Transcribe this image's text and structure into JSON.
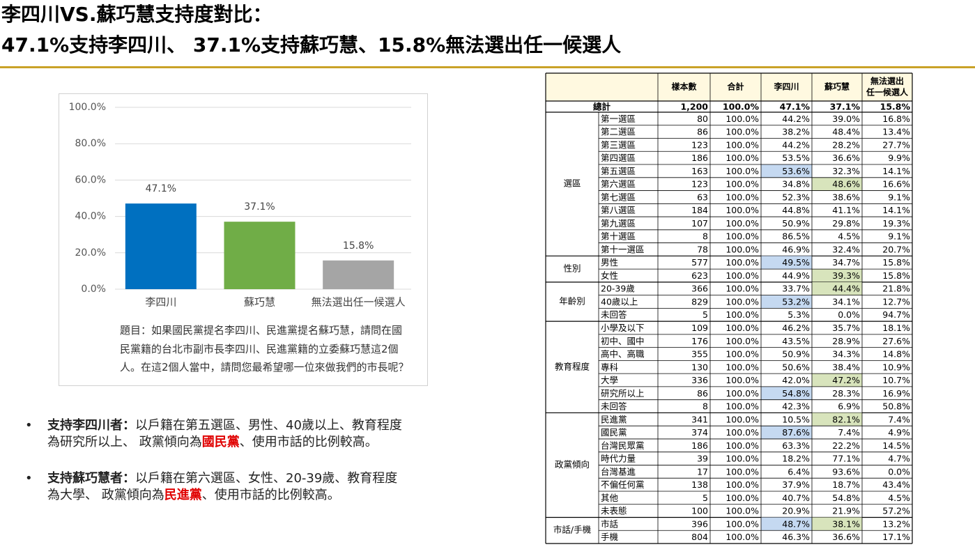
{
  "title": [
    "李四川VS.蘇巧慧支持度對比：",
    "47.1%支持李四川、 37.1%支持蘇巧慧、15.8%無法選出任一候選人"
  ],
  "chart_data": {
    "type": "bar",
    "categories": [
      "李四川",
      "蘇巧慧",
      "無法選出任一候選人"
    ],
    "values": [
      47.1,
      37.1,
      15.8
    ],
    "value_labels": [
      "47.1%",
      "37.1%",
      "15.8%"
    ],
    "colors": [
      "#0070c0",
      "#70ad47",
      "#a5a5a5"
    ],
    "ylim": [
      0,
      100
    ],
    "yticks": [
      {
        "value": 0,
        "label": "0.0%"
      },
      {
        "value": 20,
        "label": "20.0%"
      },
      {
        "value": 40,
        "label": "40.0%"
      },
      {
        "value": 60,
        "label": "60.0%"
      },
      {
        "value": 80,
        "label": "80.0%"
      },
      {
        "value": 100,
        "label": "100.0%"
      }
    ],
    "grid": true
  },
  "question": [
    "題目：如果國民黨提名李四川、民進黨提名蘇巧慧，請問在國",
    "民黨籍的台北市副市長李四川、民進黨籍的立委蘇巧慧這2個",
    "人。在這2個人當中，請問您最希望哪一位來做我們的市長呢？"
  ],
  "bullets": [
    {
      "lead": "支持李四川者：",
      "line1": "以戶籍在第五選區、男性、40歲以上、教育程度",
      "line2": "為研究所以上、 政黨傾向為",
      "party": "國民黨",
      "tail": "、使用市話的比例較高。"
    },
    {
      "lead": "支持蘇巧慧者：",
      "line1": "以戶籍在第六選區、女性、20-39歲、教育程度",
      "line2": "為大學、 政黨傾向為",
      "party": "民進黨",
      "tail": "、使用市話的比例較高。"
    }
  ],
  "table": {
    "header": [
      [
        "樣本數"
      ],
      [
        "合計"
      ],
      [
        "李四川"
      ],
      [
        "蘇巧慧"
      ],
      [
        "無法選出",
        "任一候選人"
      ]
    ],
    "total": {
      "label": "總計",
      "cells": [
        "1,200",
        "100.0%",
        "47.1%",
        "37.1%",
        "15.8%"
      ]
    },
    "groups": [
      {
        "label": "選區",
        "rows": [
          {
            "label": "第一選區",
            "cells": [
              "80",
              "100.0%",
              "44.2%",
              "39.0%",
              "16.8%"
            ]
          },
          {
            "label": "第二選區",
            "cells": [
              "86",
              "100.0%",
              "38.2%",
              "48.4%",
              "13.4%"
            ]
          },
          {
            "label": "第三選區",
            "cells": [
              "123",
              "100.0%",
              "44.2%",
              "28.2%",
              "27.7%"
            ]
          },
          {
            "label": "第四選區",
            "cells": [
              "186",
              "100.0%",
              "53.5%",
              "36.6%",
              "9.9%"
            ]
          },
          {
            "label": "第五選區",
            "cells": [
              "163",
              "100.0%",
              "53.6%",
              "32.3%",
              "14.1%"
            ],
            "highlight": {
              "2": "#c5d9f1"
            }
          },
          {
            "label": "第六選區",
            "cells": [
              "123",
              "100.0%",
              "34.8%",
              "48.6%",
              "16.6%"
            ],
            "highlight": {
              "3": "#d8e4bc"
            }
          },
          {
            "label": "第七選區",
            "cells": [
              "63",
              "100.0%",
              "52.3%",
              "38.6%",
              "9.1%"
            ]
          },
          {
            "label": "第八選區",
            "cells": [
              "184",
              "100.0%",
              "44.8%",
              "41.1%",
              "14.1%"
            ]
          },
          {
            "label": "第九選區",
            "cells": [
              "107",
              "100.0%",
              "50.9%",
              "29.8%",
              "19.3%"
            ]
          },
          {
            "label": "第十選區",
            "cells": [
              "8",
              "100.0%",
              "86.5%",
              "4.5%",
              "9.1%"
            ]
          },
          {
            "label": "第十一選區",
            "cells": [
              "78",
              "100.0%",
              "46.9%",
              "32.4%",
              "20.7%"
            ]
          }
        ]
      },
      {
        "label": "性別",
        "rows": [
          {
            "label": "男性",
            "cells": [
              "577",
              "100.0%",
              "49.5%",
              "34.7%",
              "15.8%"
            ],
            "highlight": {
              "2": "#c5d9f1"
            }
          },
          {
            "label": "女性",
            "cells": [
              "623",
              "100.0%",
              "44.9%",
              "39.3%",
              "15.8%"
            ],
            "highlight": {
              "3": "#d8e4bc"
            }
          }
        ]
      },
      {
        "label": "年齡別",
        "rows": [
          {
            "label": "20-39歲",
            "cells": [
              "366",
              "100.0%",
              "33.7%",
              "44.4%",
              "21.8%"
            ],
            "highlight": {
              "3": "#d8e4bc"
            }
          },
          {
            "label": "40歲以上",
            "cells": [
              "829",
              "100.0%",
              "53.2%",
              "34.1%",
              "12.7%"
            ],
            "highlight": {
              "2": "#c5d9f1"
            }
          },
          {
            "label": "未回答",
            "cells": [
              "5",
              "100.0%",
              "5.3%",
              "0.0%",
              "94.7%"
            ]
          }
        ]
      },
      {
        "label": "教育程度",
        "rows": [
          {
            "label": "小學及以下",
            "cells": [
              "109",
              "100.0%",
              "46.2%",
              "35.7%",
              "18.1%"
            ]
          },
          {
            "label": "初中、國中",
            "cells": [
              "176",
              "100.0%",
              "43.5%",
              "28.9%",
              "27.6%"
            ]
          },
          {
            "label": "高中、高職",
            "cells": [
              "355",
              "100.0%",
              "50.9%",
              "34.3%",
              "14.8%"
            ]
          },
          {
            "label": "專科",
            "cells": [
              "130",
              "100.0%",
              "50.6%",
              "38.4%",
              "10.9%"
            ]
          },
          {
            "label": "大學",
            "cells": [
              "336",
              "100.0%",
              "42.0%",
              "47.2%",
              "10.7%"
            ],
            "highlight": {
              "3": "#d8e4bc"
            }
          },
          {
            "label": "研究所以上",
            "cells": [
              "86",
              "100.0%",
              "54.8%",
              "28.3%",
              "16.9%"
            ],
            "highlight": {
              "2": "#c5d9f1"
            }
          },
          {
            "label": "未回答",
            "cells": [
              "8",
              "100.0%",
              "42.3%",
              "6.9%",
              "50.8%"
            ]
          }
        ]
      },
      {
        "label": "政黨傾向",
        "rows": [
          {
            "label": "民進黨",
            "cells": [
              "341",
              "100.0%",
              "10.5%",
              "82.1%",
              "7.4%"
            ],
            "highlight": {
              "3": "#d8e4bc"
            }
          },
          {
            "label": "國民黨",
            "cells": [
              "374",
              "100.0%",
              "87.6%",
              "7.4%",
              "4.9%"
            ],
            "highlight": {
              "2": "#c5d9f1"
            }
          },
          {
            "label": "台灣民眾黨",
            "cells": [
              "186",
              "100.0%",
              "63.3%",
              "22.2%",
              "14.5%"
            ]
          },
          {
            "label": "時代力量",
            "cells": [
              "39",
              "100.0%",
              "18.2%",
              "77.1%",
              "4.7%"
            ]
          },
          {
            "label": "台灣基進",
            "cells": [
              "17",
              "100.0%",
              "6.4%",
              "93.6%",
              "0.0%"
            ]
          },
          {
            "label": "不偏任何黨",
            "cells": [
              "138",
              "100.0%",
              "37.9%",
              "18.7%",
              "43.4%"
            ]
          },
          {
            "label": "其他",
            "cells": [
              "5",
              "100.0%",
              "40.7%",
              "54.8%",
              "4.5%"
            ]
          },
          {
            "label": "未表態",
            "cells": [
              "100",
              "100.0%",
              "20.9%",
              "21.9%",
              "57.2%"
            ]
          }
        ]
      },
      {
        "label": "市話/手機",
        "rows": [
          {
            "label": "市話",
            "cells": [
              "396",
              "100.0%",
              "48.7%",
              "38.1%",
              "13.2%"
            ],
            "highlight": {
              "2": "#c5d9f1",
              "3": "#d8e4bc"
            }
          },
          {
            "label": "手機",
            "cells": [
              "804",
              "100.0%",
              "46.3%",
              "36.6%",
              "17.1%"
            ]
          }
        ]
      }
    ]
  }
}
